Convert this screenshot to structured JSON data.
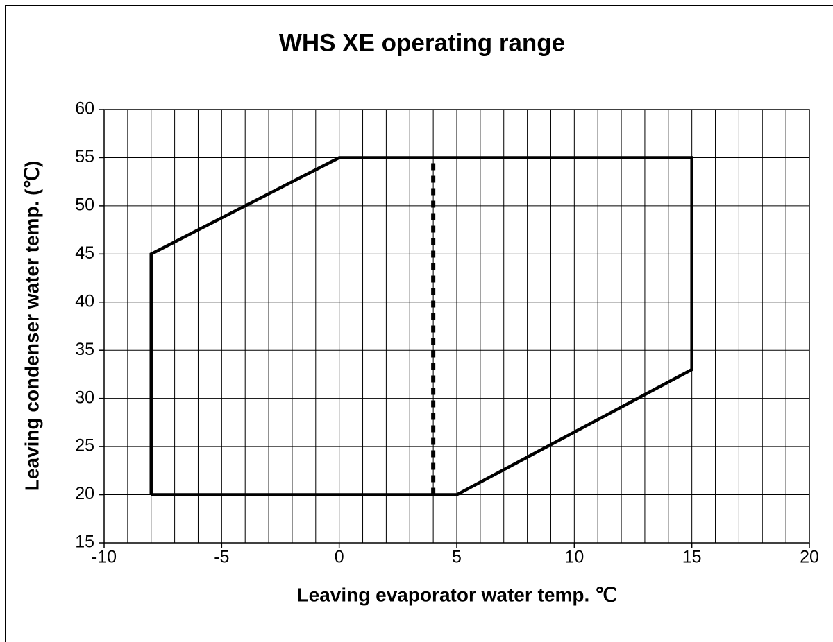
{
  "chart_data": {
    "type": "line",
    "title": "WHS XE operating range",
    "xlabel": "Leaving evaporator water temp. ℃",
    "ylabel": "Leaving condenser water temp. (℃)",
    "xlim": [
      -10,
      20
    ],
    "xticks": [
      -10,
      -5,
      0,
      5,
      10,
      15,
      20
    ],
    "xminor_ticks": [
      -9,
      -8,
      -7,
      -6,
      -4,
      -3,
      -2,
      -1,
      1,
      2,
      3,
      4,
      6,
      7,
      8,
      9,
      11,
      12,
      13,
      14,
      16,
      17,
      18,
      19
    ],
    "ylim": [
      15,
      60
    ],
    "yticks": [
      15,
      20,
      25,
      30,
      35,
      40,
      45,
      50,
      55,
      60
    ],
    "grid": true,
    "series": [
      {
        "color": "#000000",
        "style": "solid",
        "x": [
          -8,
          -8,
          0,
          15,
          15,
          5,
          -8
        ],
        "values": [
          20,
          45,
          55,
          55,
          33,
          20,
          20
        ]
      },
      {
        "color": "#000000",
        "style": "dashed",
        "x": [
          4,
          4
        ],
        "values": [
          20,
          55
        ]
      }
    ]
  }
}
